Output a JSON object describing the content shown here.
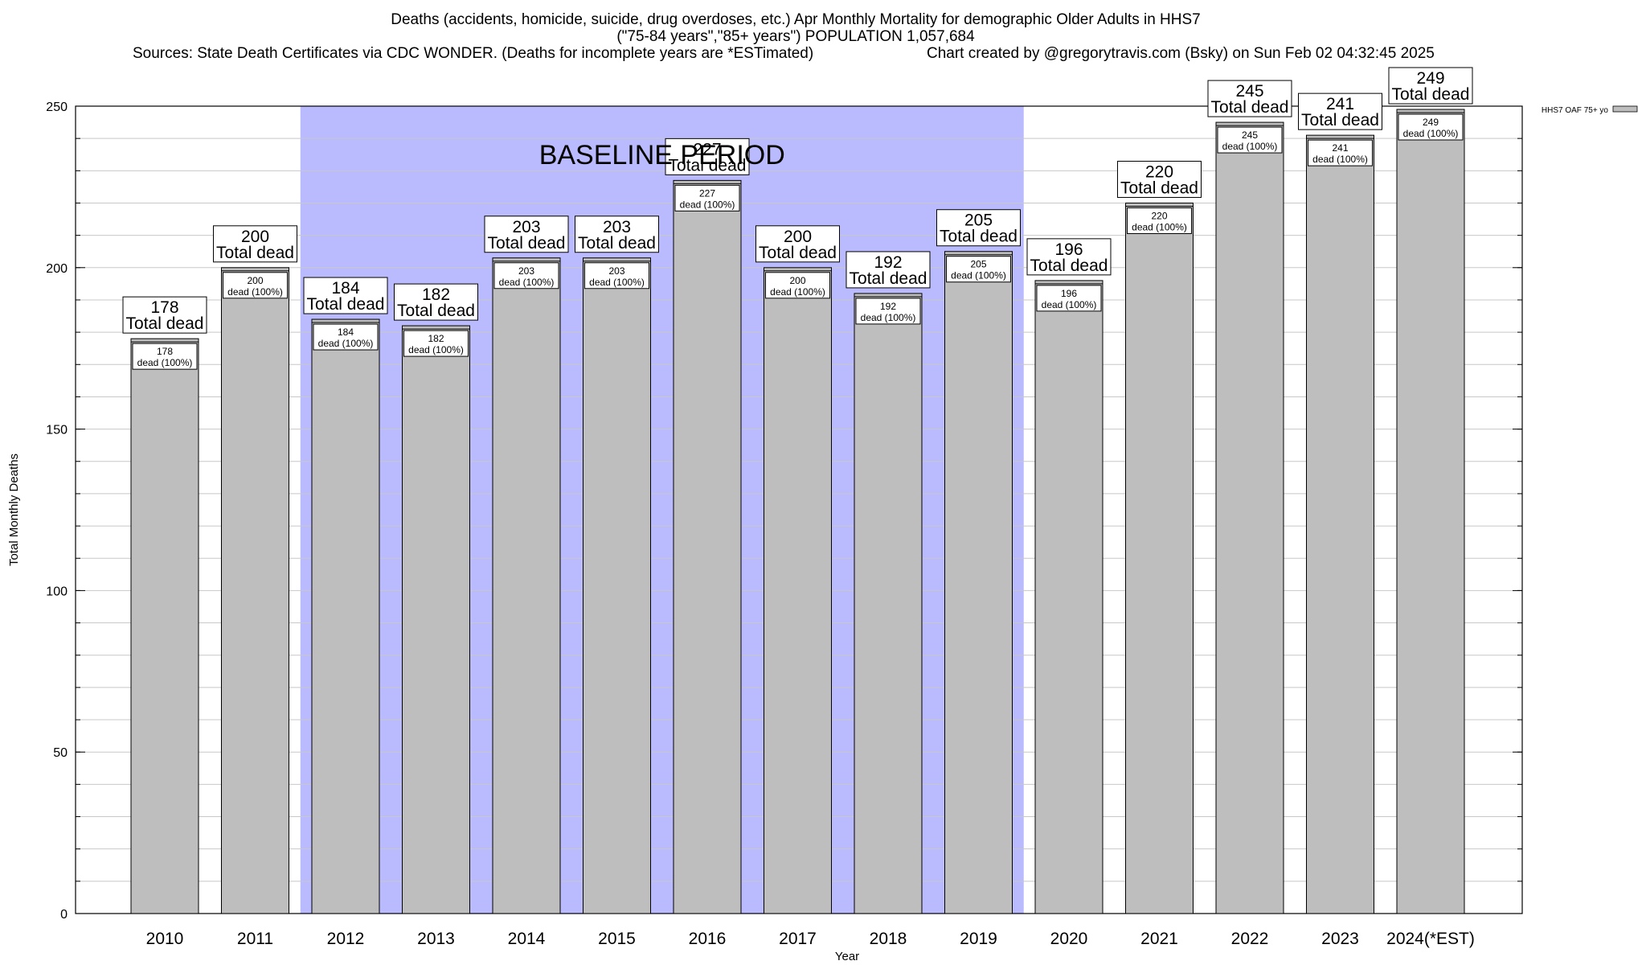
{
  "chart_data": {
    "type": "bar",
    "title_lines": [
      "Deaths (accidents, homicide, suicide, drug overdoses, etc.) Apr Monthly Mortality for demographic Older Adults in HHS7",
      "(\"75-84 years\",\"85+ years\") POPULATION 1,057,684"
    ],
    "sources": "Sources: State Death Certificates via CDC WONDER. (Deaths for incomplete years are *ESTimated)",
    "credit": "Chart created by @gregorytravis.com (Bsky) on Sun Feb 02 04:32:45 2025",
    "xlabel": "Year",
    "ylabel": "Total Monthly Deaths",
    "ylim": [
      0,
      250
    ],
    "yticks": [
      0,
      50,
      100,
      150,
      200,
      250
    ],
    "categories": [
      "2010",
      "2011",
      "2012",
      "2013",
      "2014",
      "2015",
      "2016",
      "2017",
      "2018",
      "2019",
      "2020",
      "2021",
      "2022",
      "2023",
      "2024(*EST)"
    ],
    "series": [
      {
        "name": "HHS7 OAF 75+ yo",
        "color": "#bebebe",
        "values": [
          178,
          200,
          184,
          182,
          203,
          203,
          227,
          200,
          192,
          205,
          196,
          220,
          245,
          241,
          249
        ]
      }
    ],
    "total_label": "Total dead",
    "inner_label": "dead (100%)",
    "baseline": {
      "label": "BASELINE PERIOD",
      "from": "2012",
      "to": "2019",
      "color": "#babafe"
    },
    "grid": true,
    "legend_position": "top-right"
  }
}
